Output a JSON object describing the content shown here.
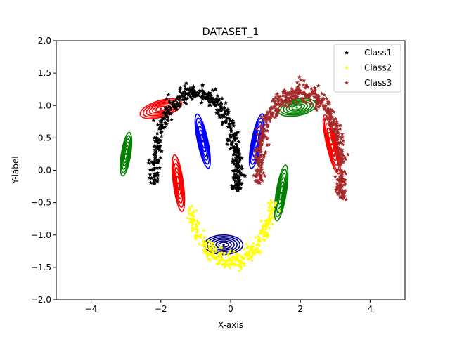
{
  "chart_data": {
    "type": "scatter",
    "title": "DATASET_1",
    "xlabel": "X-axis",
    "ylabel": "Y-label",
    "xlim": [
      -5,
      5
    ],
    "ylim": [
      -2.0,
      2.0
    ],
    "xticks": [
      -4,
      -2,
      0,
      2,
      4
    ],
    "xtick_labels": [
      "−4",
      "−2",
      "0",
      "2",
      "4"
    ],
    "yticks": [
      -2.0,
      -1.5,
      -1.0,
      -0.5,
      0.0,
      0.5,
      1.0,
      1.5,
      2.0
    ],
    "ytick_labels": [
      "−2.0",
      "−1.5",
      "−1.0",
      "−0.5",
      "0.0",
      "0.5",
      "1.0",
      "1.5",
      "2.0"
    ],
    "grid": false,
    "legend_position": "top-right",
    "series": [
      {
        "name": "Class1",
        "color": "#000000",
        "marker": "star",
        "arcs": [
          {
            "cx": -1,
            "cy": 0,
            "r": 1.2,
            "a0": 190,
            "a1": 55
          },
          {
            "cx": -1,
            "cy": 0,
            "r": 1.2,
            "a0": 55,
            "a1": 0
          },
          {
            "cx": -1,
            "cy": 0,
            "r": 1.2,
            "a0": 0,
            "a1": -15
          }
        ]
      },
      {
        "name": "Class2",
        "color": "#ffff00",
        "marker": "dot",
        "arcs": [
          {
            "cx": 0,
            "cy": -0.15,
            "r": 1.25,
            "a0": 200,
            "a1": 250
          },
          {
            "cx": 0,
            "cy": -0.15,
            "r": 1.25,
            "a0": 250,
            "a1": 290
          },
          {
            "cx": 0,
            "cy": -0.15,
            "r": 1.25,
            "a0": 290,
            "a1": 345
          }
        ]
      },
      {
        "name": "Class3",
        "color": "#a52a2a",
        "marker": "star",
        "arcs": [
          {
            "cx": 2,
            "cy": 0,
            "r": 1.2,
            "a0": 190,
            "a1": 130
          },
          {
            "cx": 2,
            "cy": 0,
            "r": 1.2,
            "a0": 130,
            "a1": 80
          },
          {
            "cx": 2,
            "cy": 0,
            "r": 1.2,
            "a0": 80,
            "a1": 0
          },
          {
            "cx": 2,
            "cy": 0,
            "r": 1.2,
            "a0": 0,
            "a1": -20
          }
        ]
      }
    ],
    "contours": [
      {
        "cx": -3.0,
        "cy": 0.25,
        "rx": 0.35,
        "ry": 0.13,
        "angle": 72,
        "color": "#008000"
      },
      {
        "cx": -2.0,
        "cy": 0.95,
        "rx": 0.6,
        "ry": 0.13,
        "angle": 8,
        "color": "#ff0000"
      },
      {
        "cx": -0.8,
        "cy": 0.45,
        "rx": 0.45,
        "ry": 0.14,
        "angle": -67,
        "color": "#0000ff"
      },
      {
        "cx": -1.5,
        "cy": -0.2,
        "rx": 0.45,
        "ry": 0.14,
        "angle": -75,
        "color": "#ff0000"
      },
      {
        "cx": -0.2,
        "cy": -1.15,
        "rx": 0.55,
        "ry": 0.15,
        "angle": 0,
        "color": "#00008b"
      },
      {
        "cx": 1.45,
        "cy": -0.35,
        "rx": 0.45,
        "ry": 0.14,
        "angle": 72,
        "color": "#008000"
      },
      {
        "cx": 0.75,
        "cy": 0.45,
        "rx": 0.45,
        "ry": 0.14,
        "angle": 68,
        "color": "#0000ff"
      },
      {
        "cx": 1.9,
        "cy": 0.97,
        "rx": 0.55,
        "ry": 0.13,
        "angle": 5,
        "color": "#008000"
      },
      {
        "cx": 2.9,
        "cy": 0.4,
        "rx": 0.5,
        "ry": 0.14,
        "angle": -65,
        "color": "#ff0000"
      }
    ]
  }
}
